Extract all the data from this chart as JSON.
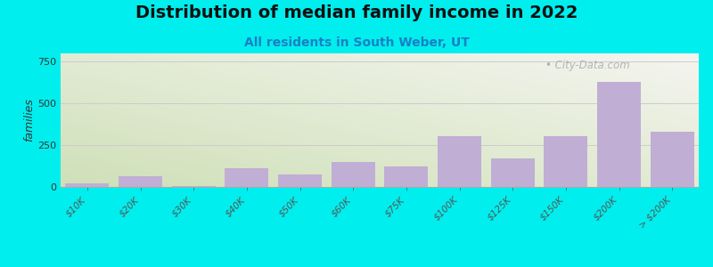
{
  "title": "Distribution of median family income in 2022",
  "subtitle": "All residents in South Weber, UT",
  "ylabel": "families",
  "background_outer": "#00EEEE",
  "bar_color": "#c0aed4",
  "categories": [
    "$10K",
    "$20K",
    "$30K",
    "$40K",
    "$50K",
    "$60K",
    "$75K",
    "$100K",
    "$125K",
    "$150K",
    "$200K",
    "> $200K"
  ],
  "values": [
    20,
    65,
    5,
    110,
    75,
    150,
    125,
    305,
    170,
    305,
    630,
    330
  ],
  "ylim": [
    0,
    800
  ],
  "yticks": [
    0,
    250,
    500,
    750
  ],
  "title_fontsize": 14,
  "subtitle_fontsize": 10,
  "watermark": "City-Data.com",
  "grad_left": "#cfe0b8",
  "grad_right": "#f0f0eb"
}
